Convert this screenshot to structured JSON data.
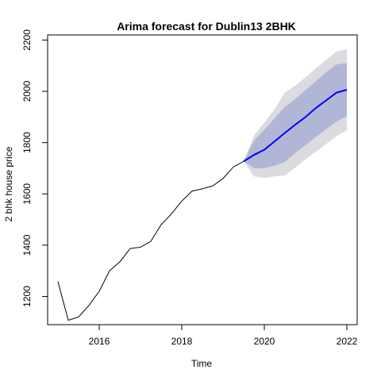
{
  "chart_data": {
    "type": "line",
    "title": "Arima forecast for Dublin13 2BHK",
    "xlabel": "Time",
    "ylabel": "2 bhk house price",
    "xlim": [
      2014.75,
      2022.25
    ],
    "ylim": [
      1090,
      2220
    ],
    "x_ticks": [
      2016,
      2018,
      2020,
      2022
    ],
    "y_ticks": [
      1200,
      1400,
      1600,
      1800,
      2000,
      2200
    ],
    "grid": false,
    "legend": "none",
    "colors": {
      "history": "#000000",
      "forecast": "#0000ff",
      "band_80": "#b2b6d6",
      "band_95": "#dbdbe0",
      "axis": "#000000"
    },
    "series": [
      {
        "role": "history",
        "x": [
          2015.0,
          2015.25,
          2015.5,
          2015.75,
          2016.0,
          2016.25,
          2016.5,
          2016.75,
          2017.0,
          2017.25,
          2017.5,
          2017.75,
          2018.0,
          2018.25,
          2018.5,
          2018.75,
          2019.0,
          2019.25,
          2019.5
        ],
        "y": [
          1258,
          1107,
          1120,
          1165,
          1220,
          1300,
          1335,
          1387,
          1392,
          1415,
          1480,
          1522,
          1572,
          1611,
          1620,
          1631,
          1660,
          1705,
          1727
        ]
      },
      {
        "role": "forecast",
        "x": [
          2019.5,
          2019.75,
          2020.0,
          2020.25,
          2020.5,
          2020.75,
          2021.0,
          2021.25,
          2021.5,
          2021.75,
          2022.0
        ],
        "y": [
          1727,
          1752,
          1772,
          1805,
          1838,
          1870,
          1900,
          1935,
          1965,
          1995,
          2006
        ],
        "lo80": [
          1727,
          1700,
          1700,
          1710,
          1725,
          1760,
          1790,
          1822,
          1852,
          1882,
          1903
        ],
        "hi80": [
          1727,
          1808,
          1850,
          1895,
          1940,
          1970,
          2005,
          2040,
          2075,
          2105,
          2110
        ],
        "lo95": [
          1727,
          1668,
          1662,
          1668,
          1672,
          1703,
          1735,
          1765,
          1795,
          1825,
          1848
        ],
        "hi95": [
          1727,
          1828,
          1878,
          1930,
          1995,
          2022,
          2055,
          2090,
          2123,
          2155,
          2165
        ]
      }
    ]
  }
}
